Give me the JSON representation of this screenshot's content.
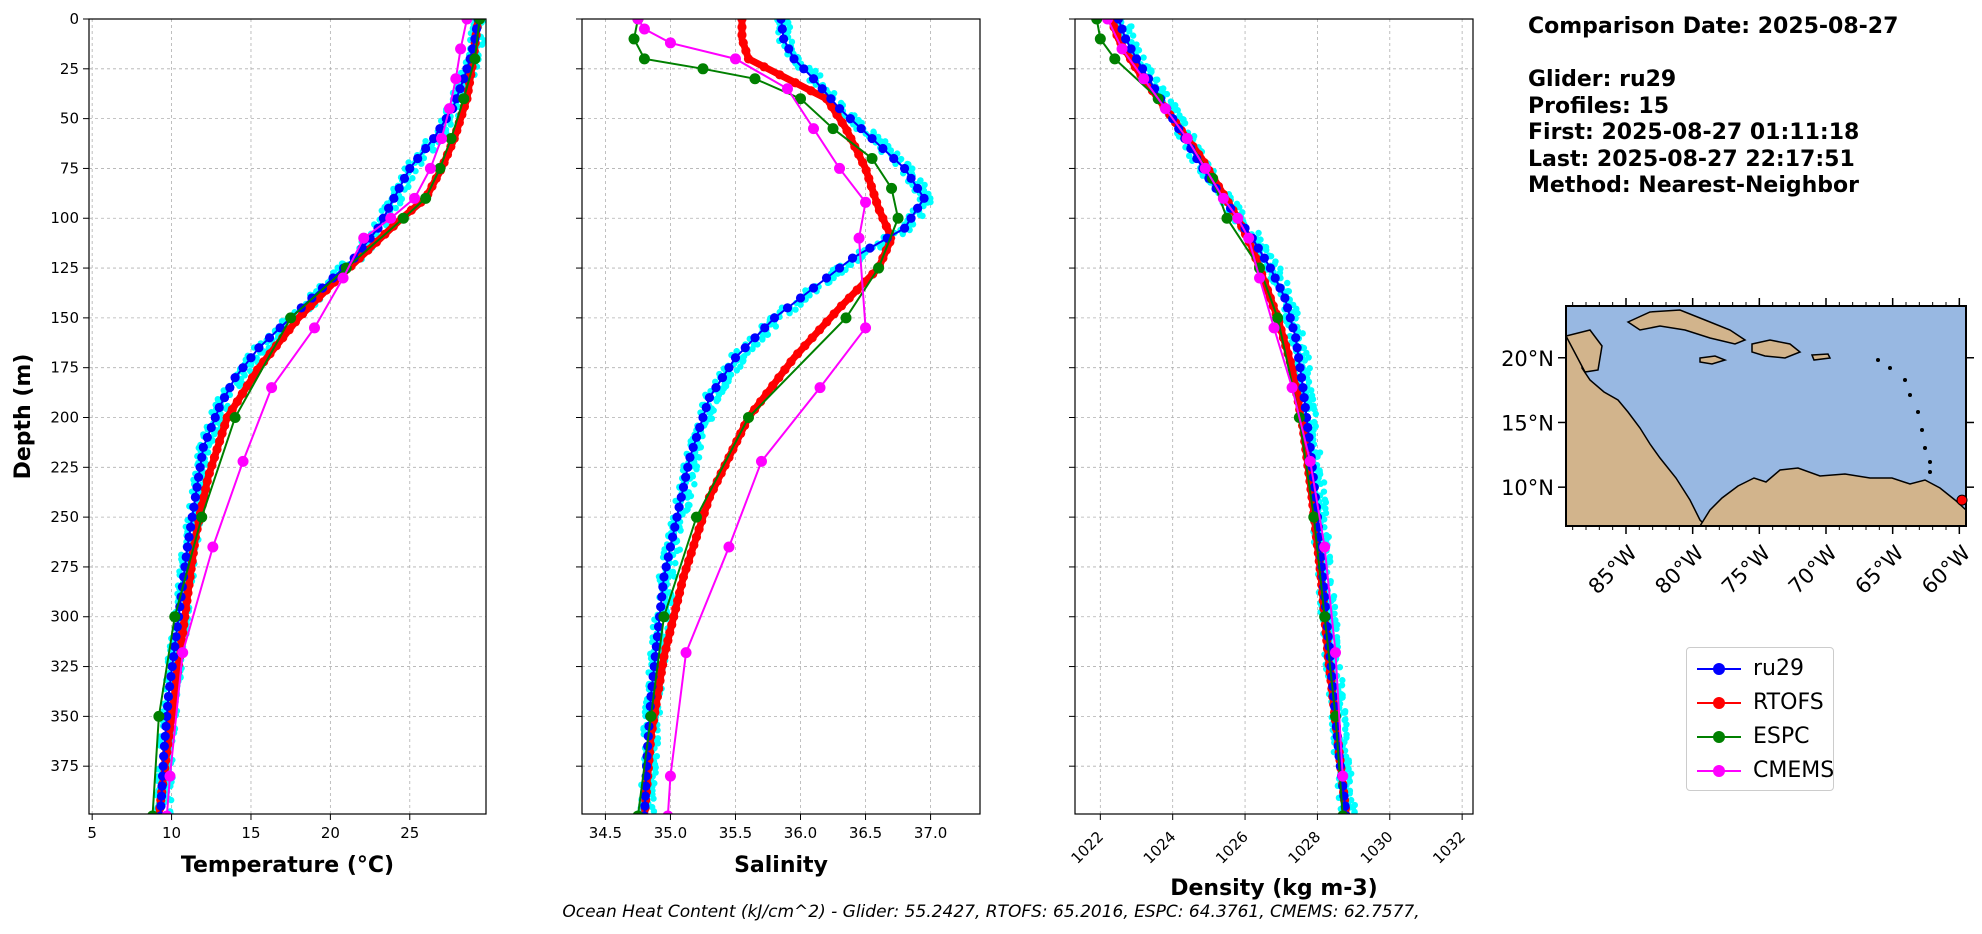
{
  "info": {
    "comparison_date": "Comparison Date: 2025-08-27",
    "glider": "Glider: ru29",
    "profiles": "Profiles: 15",
    "first": "First: 2025-08-27 01:11:18",
    "last": "Last: 2025-08-27 22:17:51",
    "method": "Method: Nearest-Neighbor"
  },
  "footer": "Ocean Heat Content (kJ/cm^2) - Glider: 55.2427,  RTOFS: 65.2016,  ESPC: 64.3761,  CMEMS: 62.7577,",
  "legend": [
    {
      "name": "ru29",
      "color": "#0000ff"
    },
    {
      "name": "RTOFS",
      "color": "#ff0000"
    },
    {
      "name": "ESPC",
      "color": "#008000"
    },
    {
      "name": "CMEMS",
      "color": "#ff00ff"
    }
  ],
  "colors": {
    "glider_raw": "#00ffff",
    "ocean": "#98b8e2",
    "land": "#d2b48c"
  },
  "chart_data": [
    {
      "type": "line",
      "xlabel": "Temperature (°C)",
      "ylabel": "Depth (m)",
      "xlim": [
        4.8,
        29.8
      ],
      "ylim": [
        399,
        0
      ],
      "xticks": [
        5,
        10,
        15,
        20,
        25
      ],
      "yticks": [
        0,
        25,
        50,
        75,
        100,
        125,
        150,
        175,
        200,
        225,
        250,
        275,
        300,
        325,
        350,
        375
      ],
      "grid": true,
      "series": [
        {
          "name": "ru29",
          "x": [
            29.3,
            29.1,
            28.8,
            28.4,
            27.7,
            26.5,
            25,
            24,
            23,
            21.5,
            19.5,
            17.5,
            15.5,
            14,
            13,
            12,
            11.5,
            11,
            10.6,
            10.2,
            9.8,
            9.5,
            9.3
          ],
          "y": [
            0,
            10,
            20,
            30,
            45,
            60,
            75,
            90,
            105,
            120,
            135,
            150,
            165,
            180,
            195,
            215,
            240,
            265,
            290,
            315,
            340,
            370,
            400
          ]
        },
        {
          "name": "RTOFS",
          "x": [
            29.3,
            29,
            28.6,
            27.8,
            27,
            26,
            24.5,
            22.5,
            20.5,
            18,
            15.5,
            13.5,
            12.3,
            11.5,
            11,
            10.5,
            10,
            9.5,
            9.2
          ],
          "y": [
            0,
            20,
            40,
            60,
            75,
            90,
            100,
            115,
            130,
            150,
            175,
            200,
            230,
            260,
            290,
            320,
            350,
            380,
            400
          ]
        },
        {
          "name": "ESPC",
          "x": [
            29.4,
            29.1,
            28.4,
            27.6,
            26.9,
            26,
            24.6,
            21,
            17.5,
            14,
            11.9,
            10.2,
            9.2,
            8.8
          ],
          "y": [
            0,
            20,
            40,
            60,
            75,
            90,
            100,
            125,
            150,
            200,
            250,
            300,
            350,
            400
          ]
        },
        {
          "name": "CMEMS",
          "x": [
            28.6,
            28.2,
            27.9,
            27.5,
            27,
            26.3,
            25.3,
            23.8,
            22.1,
            20.8,
            19,
            16.3,
            14.5,
            12.6,
            10.7,
            9.9,
            9.7
          ],
          "y": [
            0,
            15,
            30,
            45,
            60,
            75,
            90,
            100,
            110,
            130,
            155,
            185,
            222,
            265,
            318,
            380,
            400
          ]
        }
      ]
    },
    {
      "type": "line",
      "xlabel": "Salinity",
      "xlim": [
        34.32,
        37.38
      ],
      "ylim": [
        399,
        0
      ],
      "xticks": [
        34.5,
        35.0,
        35.5,
        36.0,
        36.5,
        37.0
      ],
      "grid": true,
      "series": [
        {
          "name": "ru29",
          "x": [
            35.85,
            35.87,
            35.95,
            36.1,
            36.3,
            36.55,
            36.8,
            36.95,
            36.8,
            36.4,
            36.1,
            35.8,
            35.5,
            35.3,
            35.15,
            35.05,
            34.95,
            34.9,
            34.85,
            34.82,
            34.8
          ],
          "y": [
            0,
            10,
            20,
            30,
            45,
            60,
            75,
            90,
            105,
            120,
            135,
            150,
            170,
            190,
            220,
            250,
            280,
            310,
            340,
            370,
            400
          ]
        },
        {
          "name": "RTOFS",
          "x": [
            35.55,
            35.55,
            35.6,
            35.9,
            36.2,
            36.35,
            36.5,
            36.6,
            36.7,
            36.6,
            36.3,
            35.95,
            35.6,
            35.3,
            35.1,
            34.95,
            34.85,
            34.8
          ],
          "y": [
            0,
            10,
            20,
            30,
            40,
            55,
            75,
            95,
            110,
            125,
            145,
            170,
            200,
            240,
            280,
            320,
            360,
            400
          ]
        },
        {
          "name": "ESPC",
          "x": [
            34.75,
            34.72,
            34.8,
            35.25,
            35.65,
            36.0,
            36.25,
            36.55,
            36.7,
            36.75,
            36.6,
            36.35,
            35.6,
            35.2,
            34.95,
            34.85,
            34.75
          ],
          "y": [
            0,
            10,
            20,
            25,
            30,
            40,
            55,
            70,
            85,
            100,
            125,
            150,
            200,
            250,
            300,
            350,
            400
          ]
        },
        {
          "name": "CMEMS",
          "x": [
            34.75,
            34.8,
            35.0,
            35.5,
            35.9,
            36.1,
            36.3,
            36.5,
            36.45,
            36.5,
            36.15,
            35.7,
            35.45,
            35.12,
            35.0,
            34.98
          ],
          "y": [
            0,
            5,
            12,
            20,
            35,
            55,
            75,
            92,
            110,
            155,
            185,
            222,
            265,
            318,
            380,
            400
          ]
        }
      ]
    },
    {
      "type": "line",
      "xlabel": "Density (kg m-3)",
      "xlim": [
        1021.3,
        1032.3
      ],
      "ylim": [
        399,
        0
      ],
      "xticks": [
        1022,
        1024,
        1026,
        1028,
        1030,
        1032
      ],
      "grid": true,
      "series": [
        {
          "name": "ru29",
          "x": [
            1022.5,
            1022.7,
            1023,
            1023.5,
            1024,
            1024.5,
            1025,
            1025.6,
            1026.2,
            1026.7,
            1027.1,
            1027.4,
            1027.6,
            1027.8,
            1028,
            1028.2,
            1028.4,
            1028.6,
            1028.8
          ],
          "y": [
            0,
            10,
            20,
            35,
            50,
            65,
            80,
            95,
            110,
            125,
            140,
            160,
            185,
            215,
            250,
            290,
            330,
            370,
            400
          ]
        },
        {
          "name": "RTOFS",
          "x": [
            1022.3,
            1022.5,
            1023,
            1023.6,
            1024.2,
            1024.8,
            1025.3,
            1025.8,
            1026.2,
            1026.5,
            1026.9,
            1027.3,
            1027.6,
            1027.85,
            1028.1,
            1028.3,
            1028.55,
            1028.8
          ],
          "y": [
            0,
            10,
            25,
            40,
            55,
            70,
            85,
            100,
            115,
            130,
            150,
            175,
            205,
            240,
            280,
            320,
            360,
            400
          ]
        },
        {
          "name": "ESPC",
          "x": [
            1021.9,
            1022,
            1022.4,
            1023.6,
            1024.4,
            1025.1,
            1025.5,
            1026.4,
            1026.9,
            1027.5,
            1027.9,
            1028.2,
            1028.5,
            1028.7
          ],
          "y": [
            0,
            10,
            20,
            40,
            60,
            80,
            100,
            125,
            150,
            200,
            250,
            300,
            350,
            400
          ]
        },
        {
          "name": "CMEMS",
          "x": [
            1022.2,
            1022.6,
            1023.2,
            1023.8,
            1024.4,
            1024.9,
            1025.4,
            1025.8,
            1026.1,
            1026.4,
            1026.8,
            1027.3,
            1027.8,
            1028.2,
            1028.5,
            1028.7
          ],
          "y": [
            0,
            15,
            30,
            45,
            60,
            75,
            90,
            100,
            110,
            130,
            155,
            185,
            222,
            265,
            318,
            380
          ]
        }
      ]
    }
  ],
  "map": {
    "lon_ticks": [
      "85°W",
      "80°W",
      "75°W",
      "70°W",
      "65°W",
      "60°W"
    ],
    "lat_ticks": [
      "20°N",
      "15°N",
      "10°N"
    ],
    "lon_values": [
      -85,
      -80,
      -75,
      -70,
      -65,
      -60
    ],
    "lat_values": [
      20,
      15,
      10
    ],
    "lonlim": [
      -89.5,
      -59.5
    ],
    "latlim": [
      7.0,
      24.0
    ],
    "marker": {
      "lon": -59.8,
      "lat": 9.0
    }
  }
}
